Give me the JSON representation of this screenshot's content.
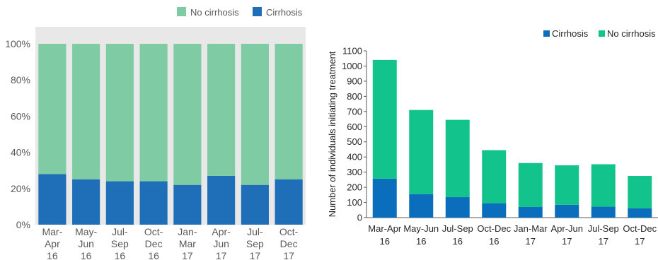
{
  "colors": {
    "cirrhosis_left": "#1f6fb8",
    "no_cirrhosis_left": "#7fcca4",
    "cirrhosis_right": "#0a6ebd",
    "no_cirrhosis_right": "#13c38c",
    "plot_bg": "#e8e8e8"
  },
  "chart_data": [
    {
      "type": "bar",
      "stacked": true,
      "percent": true,
      "categories": [
        [
          "Mar-",
          "Apr",
          "16"
        ],
        [
          "May-",
          "Jun",
          "16"
        ],
        [
          "Jul-",
          "Sep",
          "16"
        ],
        [
          "Oct-",
          "Dec",
          "16"
        ],
        [
          "Jan-",
          "Mar",
          "17"
        ],
        [
          "Apr-",
          "Jun",
          "17"
        ],
        [
          "Jul-",
          "Sep",
          "17"
        ],
        [
          "Oct-",
          "Dec",
          "17"
        ]
      ],
      "series": [
        {
          "name": "Cirrhosis",
          "values": [
            28,
            25,
            24,
            24,
            22,
            27,
            22,
            25
          ]
        },
        {
          "name": "No cirrhosis",
          "values": [
            72,
            75,
            76,
            76,
            78,
            73,
            78,
            75
          ]
        }
      ],
      "yticks": [
        "0%",
        "20%",
        "40%",
        "60%",
        "80%",
        "100%"
      ],
      "ylim": [
        0,
        100
      ],
      "legend": [
        "No cirrhosis",
        "Cirrhosis"
      ],
      "legend_position": "top"
    },
    {
      "type": "bar",
      "stacked": true,
      "categories": [
        [
          "Mar-Apr",
          "16"
        ],
        [
          "May-Jun",
          "16"
        ],
        [
          "Jul-Sep",
          "16"
        ],
        [
          "Oct-Dec",
          "16"
        ],
        [
          "Jan-Mar",
          "17"
        ],
        [
          "Apr-Jun",
          "17"
        ],
        [
          "Jul-Sep",
          "17"
        ],
        [
          "Oct-Dec",
          "17"
        ]
      ],
      "series": [
        {
          "name": "Cirrhosis",
          "values": [
            257,
            155,
            135,
            95,
            70,
            85,
            72,
            62
          ]
        },
        {
          "name": "No cirrhosis",
          "values": [
            783,
            555,
            510,
            350,
            290,
            260,
            280,
            213
          ]
        }
      ],
      "ylabel": "Number of individuals initiating treatment",
      "ylim": [
        0,
        1100
      ],
      "yticks": [
        "0",
        "100",
        "200",
        "300",
        "400",
        "500",
        "600",
        "700",
        "800",
        "900",
        "1000",
        "1100"
      ],
      "legend": [
        "Cirrhosis",
        "No cirrhosis"
      ],
      "legend_position": "top-right"
    }
  ]
}
